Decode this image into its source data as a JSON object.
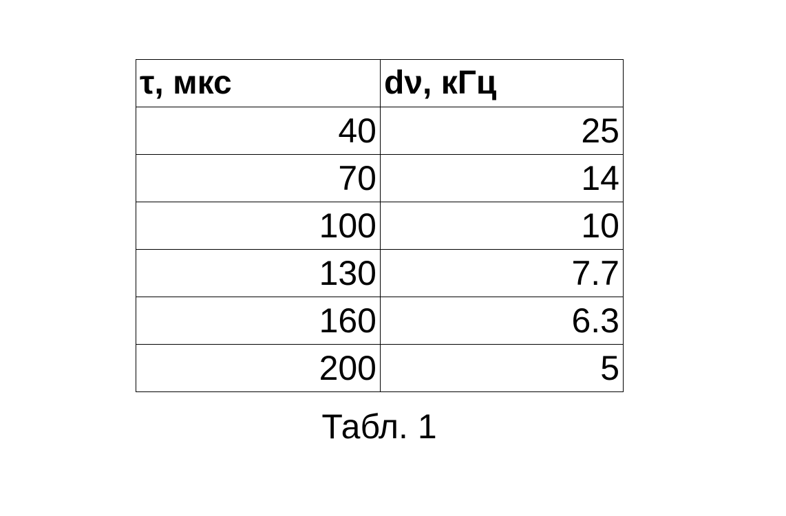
{
  "table": {
    "headers": [
      "τ, мкс",
      "dν, кГц"
    ],
    "rows": [
      [
        "40",
        "25"
      ],
      [
        "70",
        "14"
      ],
      [
        "100",
        "10"
      ],
      [
        "130",
        "7.7"
      ],
      [
        "160",
        "6.3"
      ],
      [
        "200",
        "5"
      ]
    ]
  },
  "caption": "Табл. 1"
}
